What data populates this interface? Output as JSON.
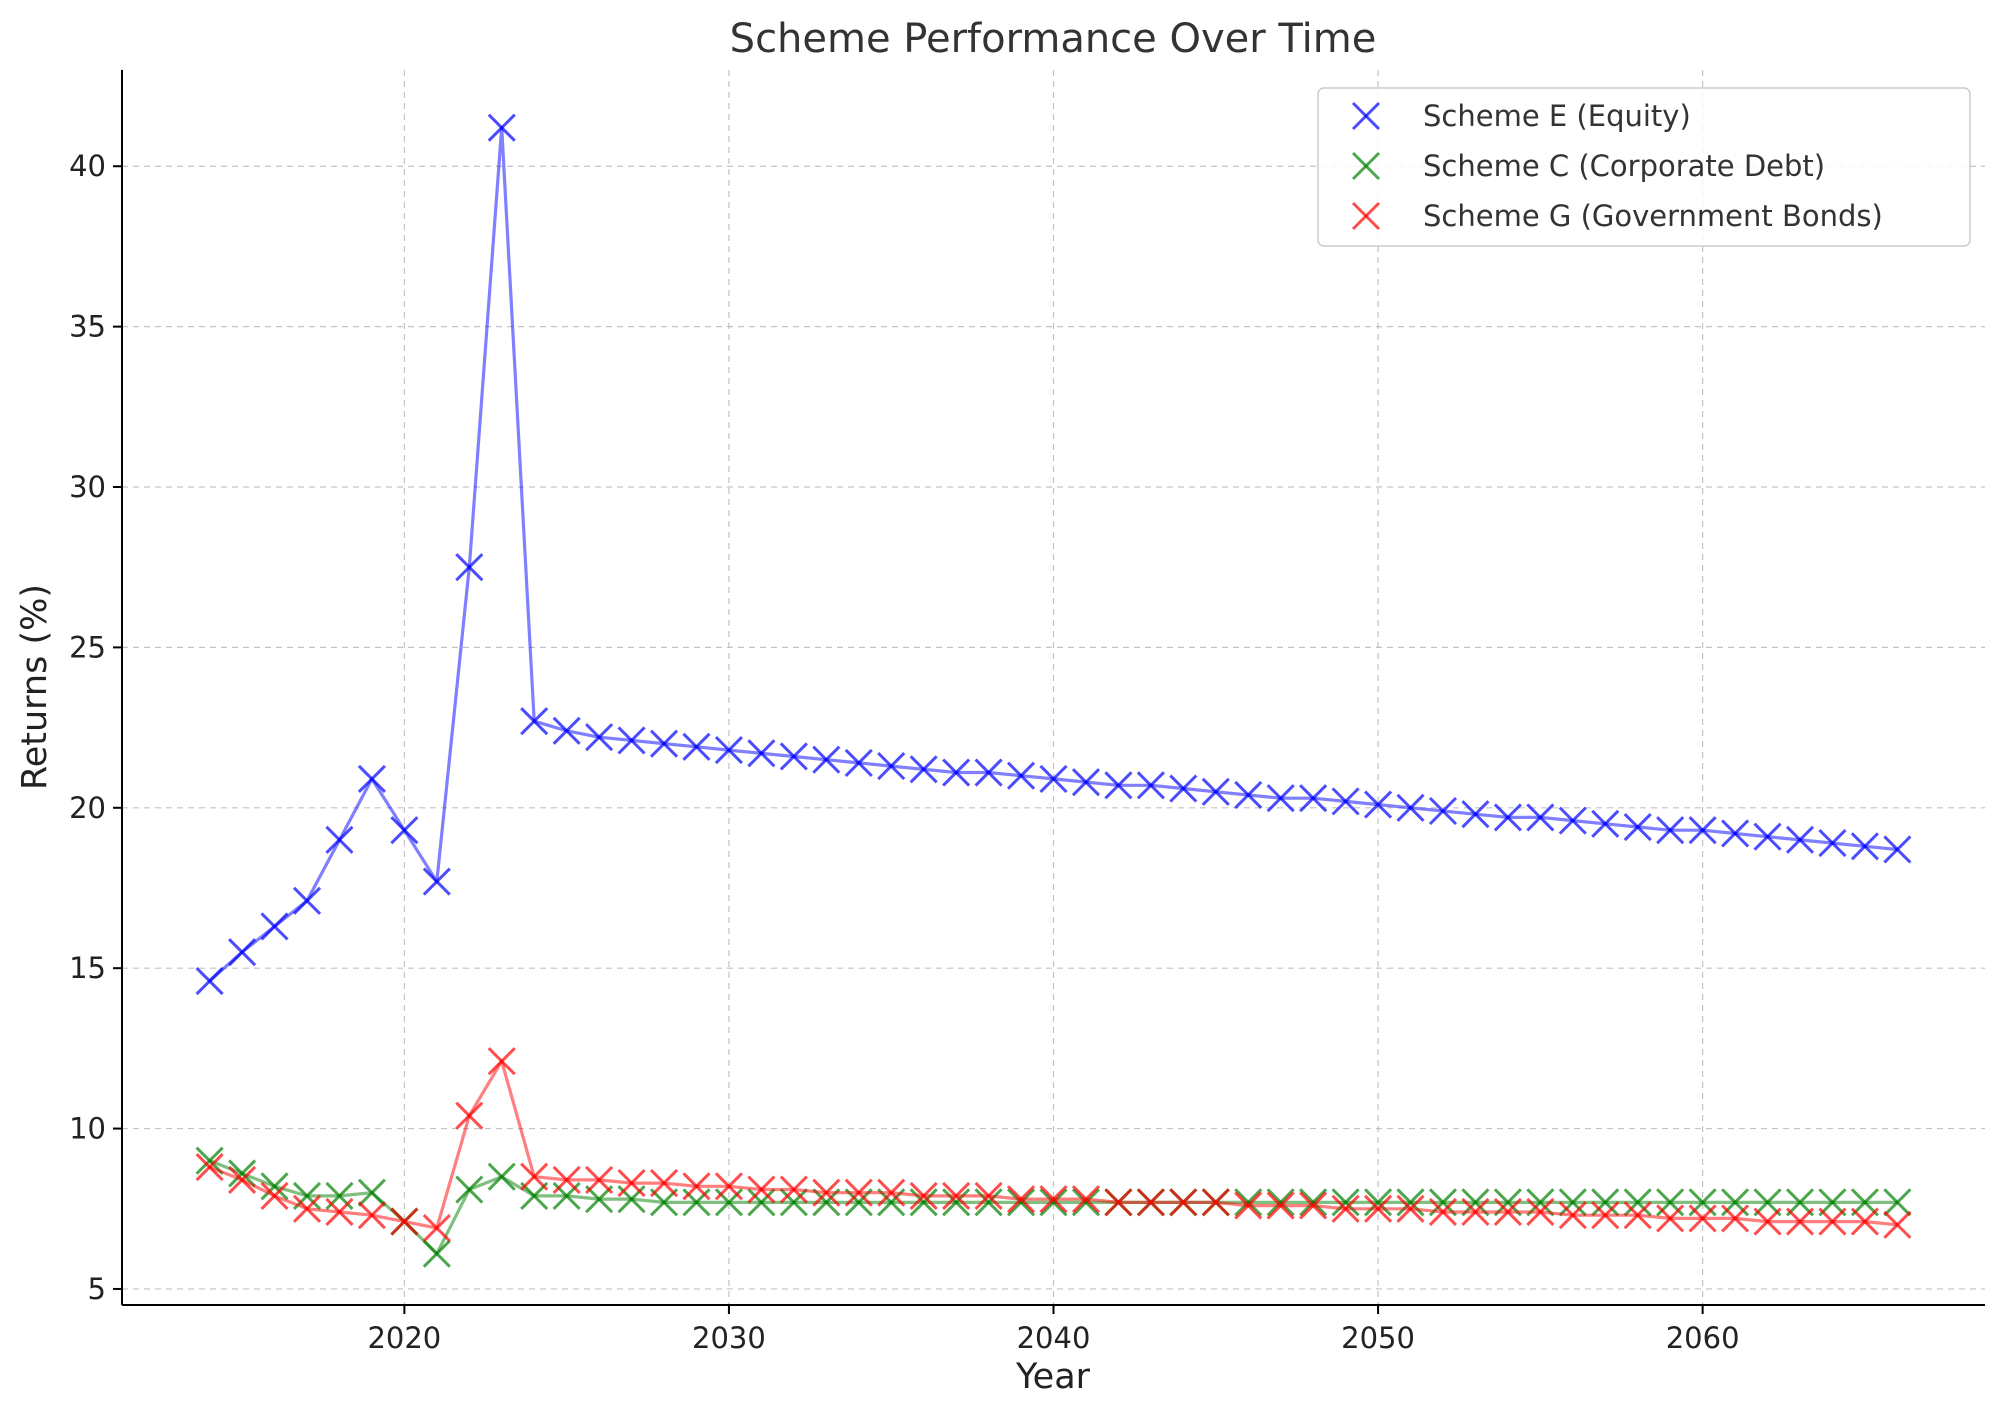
{
  "chart_data": {
    "type": "line",
    "title": "Scheme Performance Over Time",
    "xlabel": "Year",
    "ylabel": "Returns (%)",
    "xlim": [
      2011.3,
      2068.7
    ],
    "ylim": [
      4.5,
      43
    ],
    "xticks": [
      2020,
      2030,
      2040,
      2050,
      2060
    ],
    "yticks": [
      5,
      10,
      15,
      20,
      25,
      30,
      35,
      40
    ],
    "grid": true,
    "legend_position": "top-right",
    "marker": "x",
    "series": [
      {
        "name": "Scheme E (Equity)",
        "color": "#0000ff",
        "points": [
          [
            2014,
            14.6
          ],
          [
            2015,
            15.5
          ],
          [
            2016,
            16.3
          ],
          [
            2017,
            17.1
          ],
          [
            2018,
            19.0
          ],
          [
            2019,
            20.9
          ],
          [
            2020,
            19.3
          ],
          [
            2021,
            17.7
          ],
          [
            2022,
            27.5
          ],
          [
            2023,
            41.2
          ],
          [
            2024,
            22.7
          ],
          [
            2025,
            22.4
          ],
          [
            2026,
            22.2
          ],
          [
            2027,
            22.1
          ],
          [
            2028,
            22.0
          ],
          [
            2029,
            21.9
          ],
          [
            2030,
            21.8
          ],
          [
            2031,
            21.7
          ],
          [
            2032,
            21.6
          ],
          [
            2033,
            21.5
          ],
          [
            2034,
            21.4
          ],
          [
            2035,
            21.3
          ],
          [
            2036,
            21.2
          ],
          [
            2037,
            21.1
          ],
          [
            2038,
            21.1
          ],
          [
            2039,
            21.0
          ],
          [
            2040,
            20.9
          ],
          [
            2041,
            20.8
          ],
          [
            2042,
            20.7
          ],
          [
            2043,
            20.7
          ],
          [
            2044,
            20.6
          ],
          [
            2045,
            20.5
          ],
          [
            2046,
            20.4
          ],
          [
            2047,
            20.3
          ],
          [
            2048,
            20.3
          ],
          [
            2049,
            20.2
          ],
          [
            2050,
            20.1
          ],
          [
            2051,
            20.0
          ],
          [
            2052,
            19.9
          ],
          [
            2053,
            19.8
          ],
          [
            2054,
            19.7
          ],
          [
            2055,
            19.7
          ],
          [
            2056,
            19.6
          ],
          [
            2057,
            19.5
          ],
          [
            2058,
            19.4
          ],
          [
            2059,
            19.3
          ],
          [
            2060,
            19.3
          ],
          [
            2061,
            19.2
          ],
          [
            2062,
            19.1
          ],
          [
            2063,
            19.0
          ],
          [
            2064,
            18.9
          ],
          [
            2065,
            18.8
          ],
          [
            2066,
            18.7
          ]
        ]
      },
      {
        "name": "Scheme C (Corporate Debt)",
        "color": "#008000",
        "points": [
          [
            2014,
            9.0
          ],
          [
            2015,
            8.6
          ],
          [
            2016,
            8.2
          ],
          [
            2017,
            7.9
          ],
          [
            2018,
            7.9
          ],
          [
            2019,
            8.0
          ],
          [
            2020,
            7.1
          ],
          [
            2021,
            6.1
          ],
          [
            2022,
            8.1
          ],
          [
            2023,
            8.5
          ],
          [
            2024,
            7.9
          ],
          [
            2025,
            7.9
          ],
          [
            2026,
            7.8
          ],
          [
            2027,
            7.8
          ],
          [
            2028,
            7.7
          ],
          [
            2029,
            7.7
          ],
          [
            2030,
            7.7
          ],
          [
            2031,
            7.7
          ],
          [
            2032,
            7.7
          ],
          [
            2033,
            7.7
          ],
          [
            2034,
            7.7
          ],
          [
            2035,
            7.7
          ],
          [
            2036,
            7.7
          ],
          [
            2037,
            7.7
          ],
          [
            2038,
            7.7
          ],
          [
            2039,
            7.7
          ],
          [
            2040,
            7.7
          ],
          [
            2041,
            7.7
          ],
          [
            2042,
            7.7
          ],
          [
            2043,
            7.7
          ],
          [
            2044,
            7.7
          ],
          [
            2045,
            7.7
          ],
          [
            2046,
            7.7
          ],
          [
            2047,
            7.7
          ],
          [
            2048,
            7.7
          ],
          [
            2049,
            7.7
          ],
          [
            2050,
            7.7
          ],
          [
            2051,
            7.7
          ],
          [
            2052,
            7.7
          ],
          [
            2053,
            7.7
          ],
          [
            2054,
            7.7
          ],
          [
            2055,
            7.7
          ],
          [
            2056,
            7.7
          ],
          [
            2057,
            7.7
          ],
          [
            2058,
            7.7
          ],
          [
            2059,
            7.7
          ],
          [
            2060,
            7.7
          ],
          [
            2061,
            7.7
          ],
          [
            2062,
            7.7
          ],
          [
            2063,
            7.7
          ],
          [
            2064,
            7.7
          ],
          [
            2065,
            7.7
          ],
          [
            2066,
            7.7
          ]
        ]
      },
      {
        "name": "Scheme G (Government Bonds)",
        "color": "#ff0000",
        "points": [
          [
            2014,
            8.8
          ],
          [
            2015,
            8.4
          ],
          [
            2016,
            7.9
          ],
          [
            2017,
            7.5
          ],
          [
            2018,
            7.4
          ],
          [
            2019,
            7.3
          ],
          [
            2020,
            7.1
          ],
          [
            2021,
            6.9
          ],
          [
            2022,
            10.4
          ],
          [
            2023,
            12.1
          ],
          [
            2024,
            8.5
          ],
          [
            2025,
            8.4
          ],
          [
            2026,
            8.4
          ],
          [
            2027,
            8.3
          ],
          [
            2028,
            8.3
          ],
          [
            2029,
            8.2
          ],
          [
            2030,
            8.2
          ],
          [
            2031,
            8.1
          ],
          [
            2032,
            8.1
          ],
          [
            2033,
            8.0
          ],
          [
            2034,
            8.0
          ],
          [
            2035,
            8.0
          ],
          [
            2036,
            7.9
          ],
          [
            2037,
            7.9
          ],
          [
            2038,
            7.9
          ],
          [
            2039,
            7.8
          ],
          [
            2040,
            7.8
          ],
          [
            2041,
            7.8
          ],
          [
            2042,
            7.7
          ],
          [
            2043,
            7.7
          ],
          [
            2044,
            7.7
          ],
          [
            2045,
            7.7
          ],
          [
            2046,
            7.6
          ],
          [
            2047,
            7.6
          ],
          [
            2048,
            7.6
          ],
          [
            2049,
            7.5
          ],
          [
            2050,
            7.5
          ],
          [
            2051,
            7.5
          ],
          [
            2052,
            7.4
          ],
          [
            2053,
            7.4
          ],
          [
            2054,
            7.4
          ],
          [
            2055,
            7.4
          ],
          [
            2056,
            7.3
          ],
          [
            2057,
            7.3
          ],
          [
            2058,
            7.3
          ],
          [
            2059,
            7.2
          ],
          [
            2060,
            7.2
          ],
          [
            2061,
            7.2
          ],
          [
            2062,
            7.1
          ],
          [
            2063,
            7.1
          ],
          [
            2064,
            7.1
          ],
          [
            2065,
            7.1
          ],
          [
            2066,
            7.0
          ]
        ]
      }
    ]
  }
}
